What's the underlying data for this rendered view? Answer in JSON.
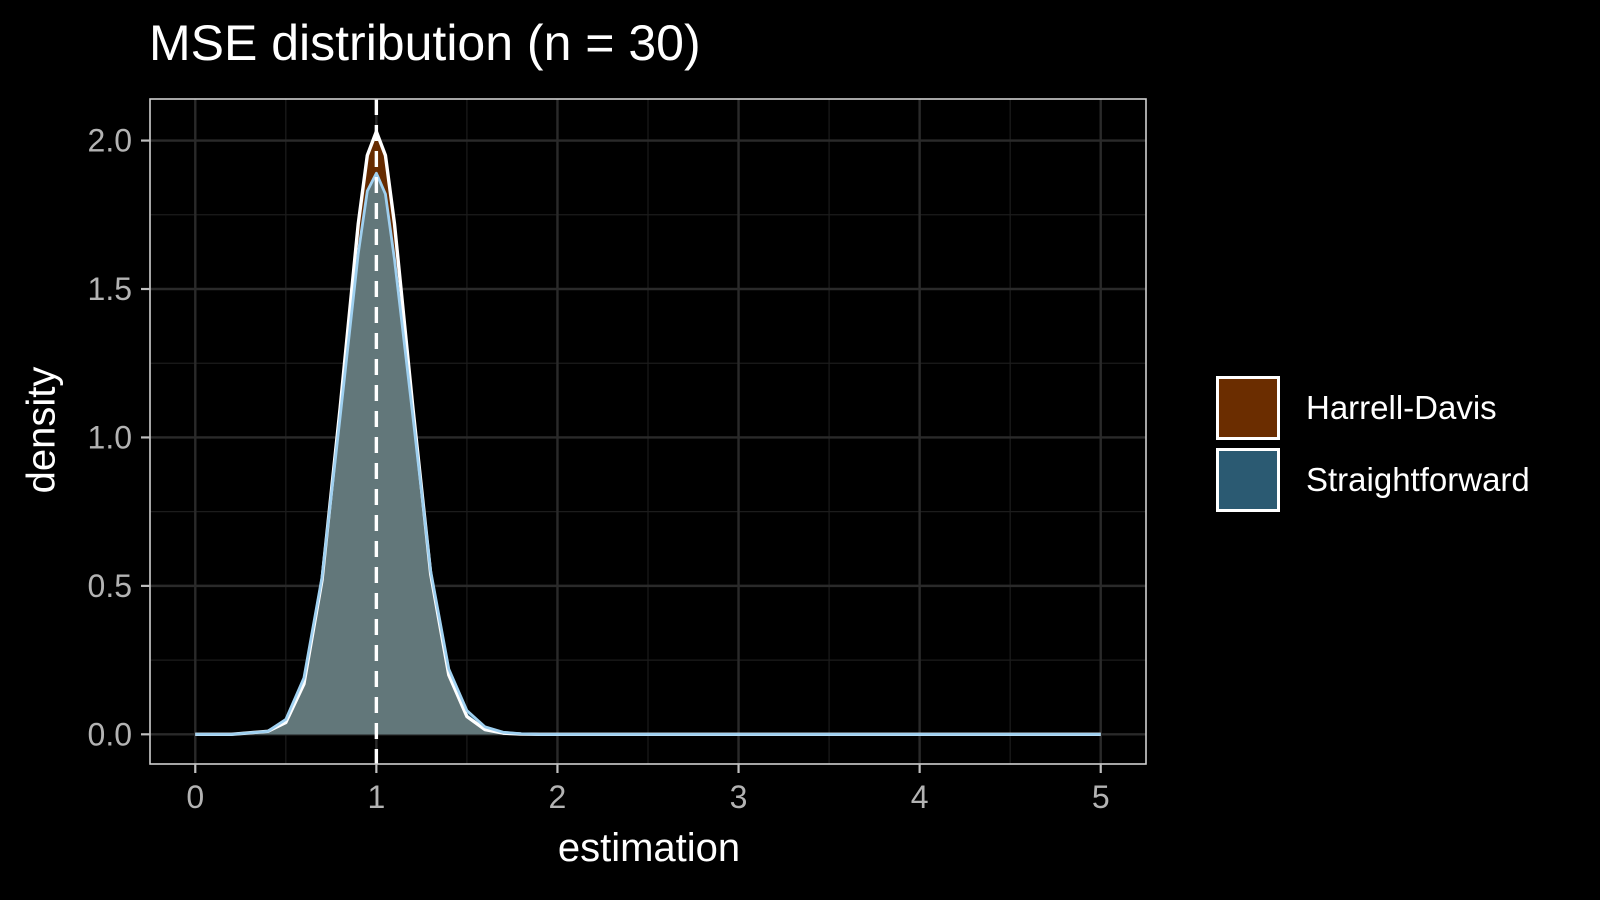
{
  "chart_data": {
    "type": "area",
    "title": "MSE distribution (n = 30)",
    "xlabel": "estimation",
    "ylabel": "density",
    "xlim": [
      -0.25,
      5.25
    ],
    "ylim": [
      -0.1,
      2.14
    ],
    "x_ticks": [
      0,
      1,
      2,
      3,
      4,
      5
    ],
    "x_tick_labels": [
      "0",
      "1",
      "2",
      "3",
      "4",
      "5"
    ],
    "y_ticks": [
      0.0,
      0.5,
      1.0,
      1.5,
      2.0
    ],
    "y_tick_labels": [
      "0.0",
      "0.5",
      "1.0",
      "1.5",
      "2.0"
    ],
    "grid": true,
    "legend_position": "right",
    "reference_line": {
      "x": 1,
      "style": "dashed",
      "color": "#ffffff"
    },
    "series": [
      {
        "name": "Harrell-Davis",
        "fill": "#6b2d00",
        "outline": "#ffffff",
        "x": [
          0,
          0.2,
          0.4,
          0.5,
          0.6,
          0.7,
          0.8,
          0.9,
          0.95,
          1.0,
          1.05,
          1.1,
          1.2,
          1.3,
          1.4,
          1.5,
          1.6,
          1.7,
          1.8,
          1.9,
          2.0,
          2.5,
          3,
          4,
          5
        ],
        "y": [
          0.0,
          0.0,
          0.01,
          0.04,
          0.17,
          0.52,
          1.1,
          1.72,
          1.95,
          2.03,
          1.95,
          1.72,
          1.11,
          0.54,
          0.2,
          0.06,
          0.016,
          0.004,
          0.001,
          0.0,
          0.0,
          0.0,
          0.0,
          0.0,
          0.0
        ]
      },
      {
        "name": "Straightforward",
        "fill": "#2b5a72",
        "outline": "#9fd0f0",
        "x": [
          0,
          0.2,
          0.4,
          0.5,
          0.6,
          0.7,
          0.8,
          0.9,
          0.95,
          1.0,
          1.05,
          1.1,
          1.2,
          1.3,
          1.4,
          1.5,
          1.6,
          1.7,
          1.8,
          1.9,
          2.0,
          2.5,
          3,
          4,
          5
        ],
        "y": [
          0.0,
          0.0,
          0.01,
          0.05,
          0.19,
          0.53,
          1.07,
          1.62,
          1.83,
          1.89,
          1.82,
          1.6,
          1.08,
          0.55,
          0.22,
          0.08,
          0.025,
          0.007,
          0.002,
          0.0,
          0.0,
          0.0,
          0.0,
          0.0,
          0.0
        ]
      }
    ]
  }
}
